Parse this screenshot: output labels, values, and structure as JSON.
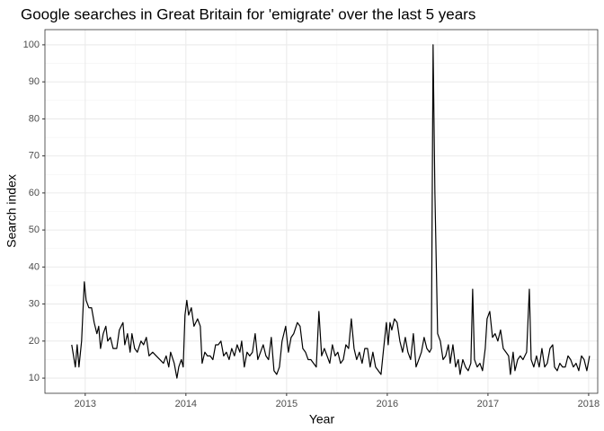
{
  "chart_data": {
    "type": "line",
    "title": "Google searches in Great Britain for 'emigrate' over the last 5 years",
    "x_label": "Year",
    "y_label": "Search index",
    "color": "#000000",
    "x": [
      2012.866,
      2012.902,
      2012.92,
      2012.938,
      2012.964,
      2012.991,
      2013.009,
      2013.036,
      2013.063,
      2013.089,
      2013.116,
      2013.134,
      2013.152,
      2013.179,
      2013.205,
      2013.223,
      2013.25,
      2013.277,
      2013.313,
      2013.339,
      2013.375,
      2013.393,
      2013.42,
      2013.446,
      2013.464,
      2013.491,
      2013.518,
      2013.554,
      2013.58,
      2013.607,
      2013.634,
      2013.67,
      2013.705,
      2013.741,
      2013.777,
      2013.804,
      2013.83,
      2013.848,
      2013.884,
      2013.911,
      2013.929,
      2013.955,
      2013.973,
      2013.991,
      2014.009,
      2014.027,
      2014.054,
      2014.08,
      2014.116,
      2014.143,
      2014.161,
      2014.188,
      2014.214,
      2014.241,
      2014.268,
      2014.295,
      2014.321,
      2014.348,
      2014.375,
      2014.402,
      2014.429,
      2014.455,
      2014.482,
      2014.509,
      2014.536,
      2014.554,
      2014.58,
      2014.607,
      2014.634,
      2014.661,
      2014.688,
      2014.714,
      2014.741,
      2014.768,
      2014.795,
      2014.821,
      2014.848,
      2014.875,
      2014.902,
      2014.929,
      2014.955,
      2014.991,
      2015.018,
      2015.045,
      2015.071,
      2015.107,
      2015.134,
      2015.161,
      2015.188,
      2015.214,
      2015.241,
      2015.268,
      2015.295,
      2015.321,
      2015.348,
      2015.375,
      2015.402,
      2015.429,
      2015.455,
      2015.482,
      2015.509,
      2015.536,
      2015.563,
      2015.589,
      2015.616,
      2015.643,
      2015.67,
      2015.696,
      2015.723,
      2015.75,
      2015.777,
      2015.804,
      2015.83,
      2015.857,
      2015.884,
      2015.911,
      2015.938,
      2015.964,
      2015.991,
      2016.009,
      2016.027,
      2016.045,
      2016.071,
      2016.098,
      2016.125,
      2016.152,
      2016.179,
      2016.205,
      2016.232,
      2016.259,
      2016.286,
      2016.313,
      2016.339,
      2016.366,
      2016.393,
      2016.42,
      2016.438,
      2016.455,
      2016.473,
      2016.5,
      2016.527,
      2016.554,
      2016.58,
      2016.607,
      2016.625,
      2016.652,
      2016.679,
      2016.705,
      2016.723,
      2016.75,
      2016.777,
      2016.804,
      2016.83,
      2016.848,
      2016.866,
      2016.893,
      2016.92,
      2016.946,
      2016.973,
      2016.991,
      2017.018,
      2017.045,
      2017.071,
      2017.098,
      2017.125,
      2017.152,
      2017.179,
      2017.205,
      2017.223,
      2017.25,
      2017.268,
      2017.295,
      2017.321,
      2017.348,
      2017.384,
      2017.411,
      2017.429,
      2017.455,
      2017.482,
      2017.509,
      2017.536,
      2017.563,
      2017.589,
      2017.616,
      2017.643,
      2017.661,
      2017.688,
      2017.714,
      2017.741,
      2017.768,
      2017.795,
      2017.821,
      2017.848,
      2017.875,
      2017.902,
      2017.929,
      2017.955,
      2017.982,
      2018.009
    ],
    "values": [
      19,
      13,
      19,
      13,
      20,
      36,
      31,
      29,
      29,
      25,
      22,
      24,
      18,
      22,
      24,
      20,
      21,
      18,
      18,
      23,
      25,
      19,
      22,
      17,
      22,
      18,
      17,
      20,
      19,
      21,
      16,
      17,
      16,
      15,
      14,
      16,
      13,
      17,
      14,
      10,
      13,
      15,
      13,
      27,
      31,
      27,
      29,
      24,
      26,
      24,
      14,
      17,
      16,
      16,
      15,
      19,
      19,
      20,
      16,
      17,
      15,
      18,
      16,
      19,
      17,
      20,
      13,
      17,
      16,
      17,
      22,
      15,
      17,
      19,
      16,
      15,
      21,
      12,
      11,
      13,
      20,
      24,
      17,
      21,
      22,
      25,
      24,
      18,
      17,
      15,
      15,
      14,
      13,
      28,
      16,
      18,
      16,
      14,
      19,
      16,
      17,
      14,
      15,
      19,
      18,
      26,
      18,
      15,
      17,
      14,
      18,
      18,
      13,
      17,
      13,
      12,
      11,
      18,
      25,
      19,
      25,
      23,
      26,
      25,
      20,
      17,
      21,
      17,
      15,
      22,
      13,
      15,
      17,
      21,
      18,
      17,
      18,
      100,
      60,
      22,
      20,
      15,
      16,
      19,
      14,
      19,
      13,
      15,
      11,
      15,
      13,
      12,
      14,
      34,
      15,
      13,
      14,
      12,
      18,
      26,
      28,
      21,
      22,
      20,
      23,
      18,
      17,
      16,
      11,
      17,
      12,
      15,
      16,
      15,
      17,
      34,
      15,
      13,
      16,
      13,
      18,
      13,
      14,
      18,
      19,
      13,
      12,
      14,
      13,
      13,
      16,
      15,
      13,
      14,
      12,
      16,
      15,
      12,
      16
    ],
    "xlim": [
      2012.6,
      2018.09
    ],
    "xticks": [
      2013,
      2014,
      2015,
      2016,
      2017,
      2018
    ],
    "ylim": [
      5.9,
      104.1
    ],
    "yticks": [
      10,
      20,
      30,
      40,
      50,
      60,
      70,
      80,
      90,
      100
    ],
    "grid": true
  }
}
